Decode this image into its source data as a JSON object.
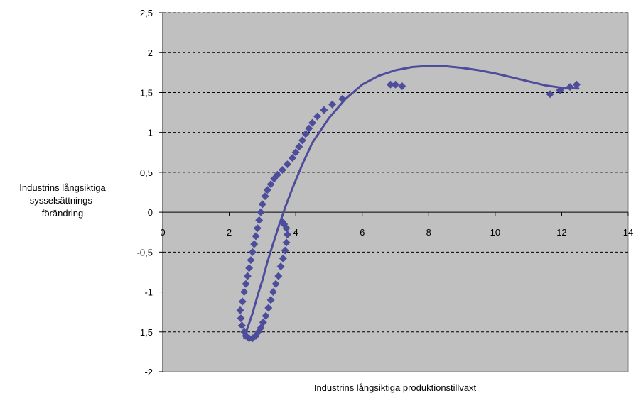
{
  "chart_data": {
    "type": "scatter",
    "xlabel": "Industrins långsiktiga produktionstillväxt",
    "ylabel_lines": [
      "Industrins långsiktiga",
      "sysselsättnings-",
      "förändring"
    ],
    "xlim": [
      0,
      14
    ],
    "ylim": [
      -2,
      2.5
    ],
    "x_ticks": [
      0,
      2,
      4,
      6,
      8,
      10,
      12,
      14
    ],
    "x_tick_labels": [
      "0",
      "2",
      "4",
      "6",
      "8",
      "10",
      "12",
      "14"
    ],
    "y_ticks": [
      2.5,
      2,
      1.5,
      1,
      0.5,
      0,
      -0.5,
      -1,
      -1.5,
      -2
    ],
    "y_tick_labels": [
      "2,5",
      "2",
      "1,5",
      "1",
      "0,5",
      "0",
      "-0,5",
      "-1",
      "-1,5",
      "-2"
    ],
    "grid": "horizontal dashed",
    "plot_background": "#c0c0c0",
    "marker_color": "#4d4d9c",
    "line_color": "#4d4d9c",
    "series": [
      {
        "kind": "points",
        "points": [
          [
            3.6,
            -0.12
          ],
          [
            3.65,
            -0.15
          ],
          [
            3.72,
            -0.2
          ],
          [
            3.75,
            -0.28
          ],
          [
            3.72,
            -0.38
          ],
          [
            3.68,
            -0.48
          ],
          [
            3.62,
            -0.58
          ],
          [
            3.55,
            -0.68
          ],
          [
            3.48,
            -0.8
          ],
          [
            3.4,
            -0.9
          ],
          [
            3.32,
            -1.0
          ],
          [
            3.25,
            -1.1
          ],
          [
            3.18,
            -1.2
          ],
          [
            3.1,
            -1.3
          ],
          [
            3.02,
            -1.38
          ],
          [
            2.95,
            -1.45
          ],
          [
            2.88,
            -1.5
          ],
          [
            2.8,
            -1.55
          ],
          [
            2.7,
            -1.58
          ],
          [
            2.6,
            -1.58
          ],
          [
            2.5,
            -1.55
          ],
          [
            2.45,
            -1.5
          ],
          [
            2.38,
            -1.42
          ],
          [
            2.35,
            -1.33
          ],
          [
            2.33,
            -1.23
          ],
          [
            2.4,
            -1.12
          ],
          [
            2.45,
            -1.0
          ],
          [
            2.5,
            -0.9
          ],
          [
            2.55,
            -0.8
          ],
          [
            2.6,
            -0.7
          ],
          [
            2.65,
            -0.6
          ],
          [
            2.7,
            -0.5
          ],
          [
            2.75,
            -0.4
          ],
          [
            2.8,
            -0.3
          ],
          [
            2.85,
            -0.2
          ],
          [
            2.9,
            -0.1
          ],
          [
            2.95,
            0.0
          ],
          [
            3.0,
            0.1
          ],
          [
            3.08,
            0.2
          ],
          [
            3.15,
            0.28
          ],
          [
            3.25,
            0.35
          ],
          [
            3.35,
            0.42
          ],
          [
            3.45,
            0.47
          ],
          [
            3.6,
            0.53
          ],
          [
            3.75,
            0.6
          ],
          [
            3.9,
            0.68
          ],
          [
            4.0,
            0.75
          ],
          [
            4.1,
            0.82
          ],
          [
            4.2,
            0.9
          ],
          [
            4.3,
            0.98
          ],
          [
            4.4,
            1.05
          ],
          [
            4.5,
            1.12
          ],
          [
            4.65,
            1.2
          ],
          [
            4.85,
            1.28
          ],
          [
            5.1,
            1.35
          ],
          [
            5.4,
            1.42
          ],
          [
            6.85,
            1.6
          ],
          [
            7.0,
            1.6
          ],
          [
            7.2,
            1.58
          ],
          [
            11.65,
            1.48
          ],
          [
            11.95,
            1.53
          ],
          [
            12.25,
            1.57
          ],
          [
            12.45,
            1.6
          ]
        ]
      },
      {
        "kind": "trendline",
        "points": [
          [
            2.45,
            -1.58
          ],
          [
            2.55,
            -1.45
          ],
          [
            2.7,
            -1.27
          ],
          [
            2.85,
            -1.05
          ],
          [
            3.0,
            -0.85
          ],
          [
            3.15,
            -0.62
          ],
          [
            3.3,
            -0.42
          ],
          [
            3.5,
            -0.16
          ],
          [
            3.7,
            0.08
          ],
          [
            3.9,
            0.3
          ],
          [
            4.2,
            0.6
          ],
          [
            4.5,
            0.87
          ],
          [
            5.0,
            1.18
          ],
          [
            5.5,
            1.42
          ],
          [
            6.0,
            1.6
          ],
          [
            6.5,
            1.71
          ],
          [
            7.0,
            1.78
          ],
          [
            7.5,
            1.82
          ],
          [
            8.0,
            1.835
          ],
          [
            8.5,
            1.83
          ],
          [
            9.0,
            1.81
          ],
          [
            9.5,
            1.78
          ],
          [
            10.0,
            1.74
          ],
          [
            10.5,
            1.69
          ],
          [
            11.0,
            1.64
          ],
          [
            11.5,
            1.59
          ],
          [
            12.0,
            1.56
          ],
          [
            12.5,
            1.55
          ]
        ]
      }
    ]
  }
}
